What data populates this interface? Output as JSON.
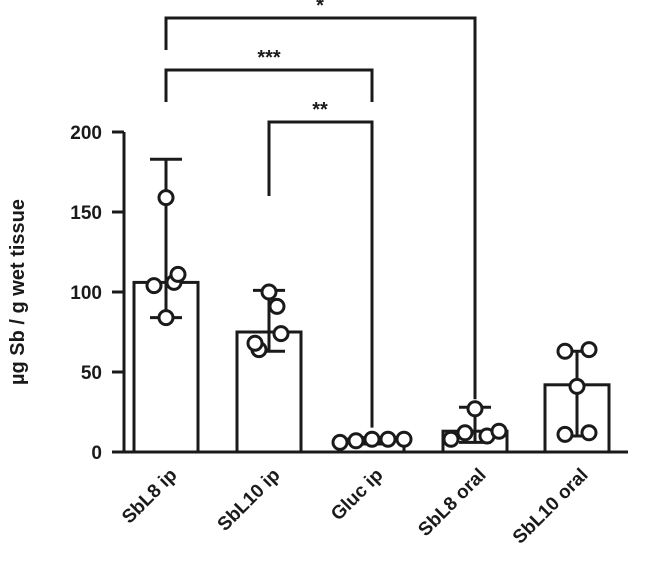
{
  "chart_data": {
    "type": "bar",
    "title": "",
    "xlabel": "",
    "ylabel": "µg Sb / g wet tissue",
    "ylim": [
      0,
      200
    ],
    "yticks": [
      0,
      50,
      100,
      150,
      200
    ],
    "grid": false,
    "legend": "none",
    "categories": [
      "SbL8 ip",
      "SbL10 ip",
      "Gluc ip",
      "SbL8 oral",
      "SbL10 oral"
    ],
    "values": [
      106,
      75,
      8,
      13,
      42
    ],
    "error_low": [
      84,
      63,
      5,
      6,
      10
    ],
    "error_high": [
      183,
      101,
      9,
      28,
      63
    ],
    "points": [
      [
        84,
        104,
        106,
        111,
        159
      ],
      [
        64,
        68,
        74,
        91,
        100
      ],
      [
        6,
        7,
        8,
        8,
        8
      ],
      [
        8,
        10,
        12,
        13,
        27
      ],
      [
        11,
        12,
        41,
        63,
        64
      ]
    ],
    "significance": [
      {
        "from": 0,
        "to": 3,
        "label": "*"
      },
      {
        "from": 0,
        "to": 2,
        "label": "***"
      },
      {
        "from": 1,
        "to": 2,
        "label": "**"
      }
    ],
    "colors": {
      "bar_fill": "#ffffff",
      "stroke": "#1a1a1a",
      "point_fill": "#ffffff"
    }
  }
}
